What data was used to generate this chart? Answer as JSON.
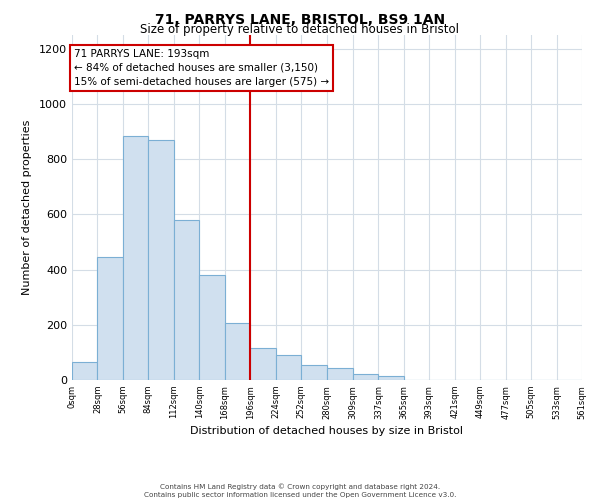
{
  "title": "71, PARRYS LANE, BRISTOL, BS9 1AN",
  "subtitle": "Size of property relative to detached houses in Bristol",
  "xlabel": "Distribution of detached houses by size in Bristol",
  "ylabel": "Number of detached properties",
  "bar_edges": [
    0,
    28,
    56,
    84,
    112,
    140,
    168,
    196,
    224,
    252,
    280,
    309,
    337,
    365,
    393,
    421,
    449,
    477,
    505,
    533,
    561
  ],
  "bar_heights": [
    65,
    445,
    885,
    870,
    580,
    380,
    205,
    115,
    90,
    55,
    45,
    20,
    15,
    0,
    0,
    0,
    0,
    0,
    0,
    0
  ],
  "bar_color": "#d0e0ef",
  "bar_edge_color": "#7bafd4",
  "vline_x": 196,
  "vline_color": "#cc0000",
  "ylim": [
    0,
    1250
  ],
  "yticks": [
    0,
    200,
    400,
    600,
    800,
    1000,
    1200
  ],
  "tick_labels": [
    "0sqm",
    "28sqm",
    "56sqm",
    "84sqm",
    "112sqm",
    "140sqm",
    "168sqm",
    "196sqm",
    "224sqm",
    "252sqm",
    "280sqm",
    "309sqm",
    "337sqm",
    "365sqm",
    "393sqm",
    "421sqm",
    "449sqm",
    "477sqm",
    "505sqm",
    "533sqm",
    "561sqm"
  ],
  "annotation_title": "71 PARRYS LANE: 193sqm",
  "annotation_line1": "← 84% of detached houses are smaller (3,150)",
  "annotation_line2": "15% of semi-detached houses are larger (575) →",
  "annotation_box_color": "#ffffff",
  "annotation_box_edge": "#cc0000",
  "footer_line1": "Contains HM Land Registry data © Crown copyright and database right 2024.",
  "footer_line2": "Contains public sector information licensed under the Open Government Licence v3.0.",
  "bg_color": "#ffffff",
  "grid_color": "#d4dde6"
}
